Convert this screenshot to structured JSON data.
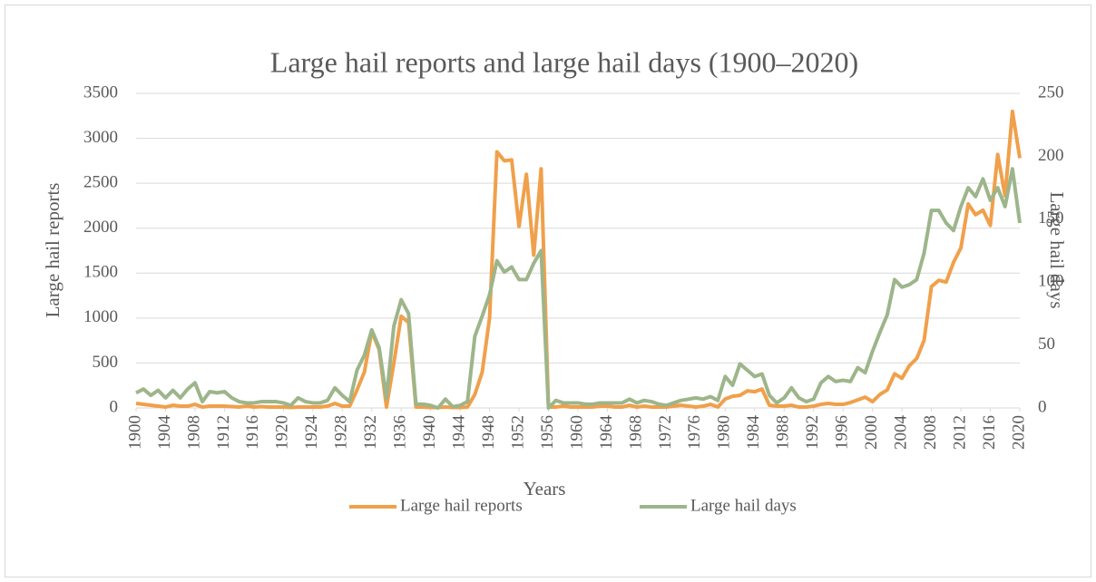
{
  "chart_data": {
    "type": "line",
    "title": "Large hail reports and large hail days (1900–2020)",
    "xlabel": "Years",
    "ylabel": "Large hail reports",
    "y2label": "Large hail days",
    "x": [
      1900,
      1901,
      1902,
      1903,
      1904,
      1905,
      1906,
      1907,
      1908,
      1909,
      1910,
      1911,
      1912,
      1913,
      1914,
      1915,
      1916,
      1917,
      1918,
      1919,
      1920,
      1921,
      1922,
      1923,
      1924,
      1925,
      1926,
      1927,
      1928,
      1929,
      1930,
      1931,
      1932,
      1933,
      1934,
      1935,
      1936,
      1937,
      1938,
      1939,
      1940,
      1941,
      1942,
      1943,
      1944,
      1945,
      1946,
      1947,
      1948,
      1949,
      1950,
      1951,
      1952,
      1953,
      1954,
      1955,
      1956,
      1957,
      1958,
      1959,
      1960,
      1961,
      1962,
      1963,
      1964,
      1965,
      1966,
      1967,
      1968,
      1969,
      1970,
      1971,
      1972,
      1973,
      1974,
      1975,
      1976,
      1977,
      1978,
      1979,
      1980,
      1981,
      1982,
      1983,
      1984,
      1985,
      1986,
      1987,
      1988,
      1989,
      1990,
      1991,
      1992,
      1993,
      1994,
      1995,
      1996,
      1997,
      1998,
      1999,
      2000,
      2001,
      2002,
      2003,
      2004,
      2005,
      2006,
      2007,
      2008,
      2009,
      2010,
      2011,
      2012,
      2013,
      2014,
      2015,
      2016,
      2017,
      2018,
      2019,
      2020
    ],
    "xlim": [
      1900,
      2020
    ],
    "xticks": [
      1900,
      1904,
      1908,
      1912,
      1916,
      1920,
      1924,
      1928,
      1932,
      1936,
      1940,
      1944,
      1948,
      1952,
      1956,
      1960,
      1964,
      1968,
      1972,
      1976,
      1980,
      1984,
      1988,
      1992,
      1996,
      2000,
      2004,
      2008,
      2012,
      2016,
      2020
    ],
    "ylim": [
      0,
      3500
    ],
    "yticks": [
      0,
      500,
      1000,
      1500,
      2000,
      2500,
      3000,
      3500
    ],
    "y2lim": [
      0,
      250
    ],
    "y2ticks": [
      0,
      50,
      100,
      150,
      200,
      250
    ],
    "grid": true,
    "legend": "bottom",
    "series": [
      {
        "name": "Large hail reports",
        "color": "#f0a04b",
        "values": [
          50,
          40,
          30,
          20,
          10,
          30,
          20,
          20,
          40,
          10,
          20,
          20,
          20,
          15,
          10,
          20,
          10,
          15,
          10,
          10,
          10,
          5,
          10,
          10,
          10,
          10,
          20,
          50,
          20,
          20,
          200,
          400,
          850,
          650,
          10,
          500,
          1020,
          950,
          10,
          10,
          5,
          5,
          10,
          5,
          5,
          10,
          150,
          400,
          1000,
          2850,
          2750,
          2760,
          2020,
          2600,
          1700,
          2660,
          10,
          10,
          20,
          10,
          10,
          10,
          10,
          20,
          20,
          10,
          10,
          30,
          10,
          20,
          10,
          10,
          10,
          20,
          30,
          20,
          10,
          20,
          40,
          10,
          100,
          130,
          140,
          190,
          180,
          210,
          30,
          20,
          20,
          30,
          10,
          10,
          20,
          40,
          50,
          40,
          40,
          60,
          90,
          120,
          70,
          150,
          200,
          380,
          330,
          470,
          550,
          750,
          1350,
          1420,
          1400,
          1620,
          1780,
          2270,
          2150,
          2200,
          2030,
          2820,
          2360,
          3300,
          2780
        ]
      },
      {
        "name": "Large hail days",
        "color": "#9db58a",
        "axis": "y2",
        "values": [
          12,
          15,
          10,
          14,
          8,
          14,
          8,
          15,
          20,
          5,
          13,
          12,
          13,
          8,
          5,
          4,
          4,
          5,
          5,
          5,
          4,
          2,
          8,
          5,
          4,
          4,
          6,
          16,
          10,
          5,
          30,
          42,
          62,
          48,
          8,
          65,
          86,
          75,
          3,
          3,
          2,
          0,
          7,
          1,
          2,
          5,
          57,
          73,
          90,
          117,
          108,
          112,
          102,
          102,
          115,
          125,
          0,
          6,
          4,
          4,
          4,
          3,
          3,
          4,
          4,
          4,
          4,
          7,
          4,
          6,
          5,
          3,
          2,
          4,
          6,
          7,
          8,
          7,
          9,
          6,
          25,
          18,
          35,
          30,
          25,
          27,
          10,
          4,
          8,
          16,
          8,
          5,
          7,
          20,
          25,
          21,
          22,
          21,
          32,
          28,
          45,
          60,
          74,
          102,
          96,
          98,
          102,
          123,
          157,
          157,
          147,
          141,
          160,
          175,
          168,
          182,
          165,
          175,
          160,
          190,
          147
        ]
      }
    ]
  }
}
